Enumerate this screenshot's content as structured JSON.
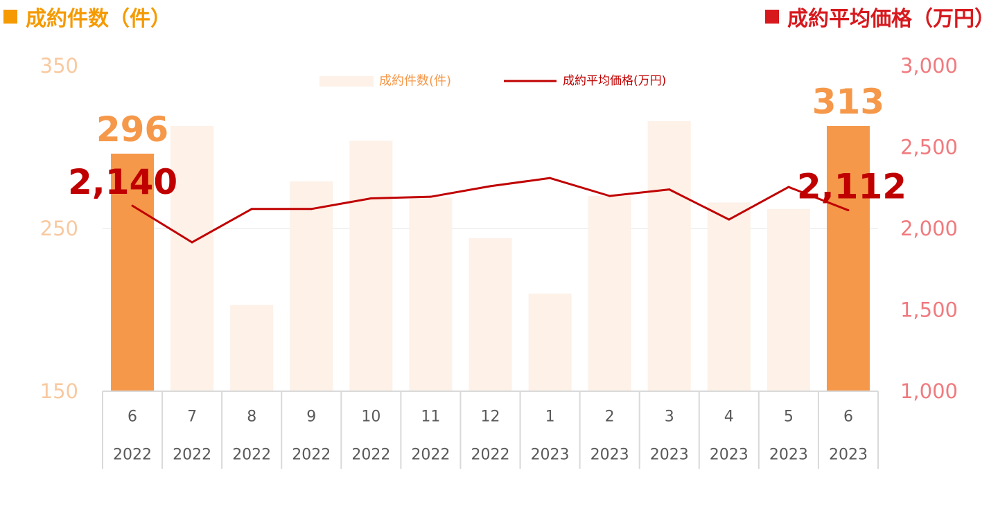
{
  "headers": {
    "left": {
      "text": "成約件数（件）",
      "color": "#F59A00"
    },
    "right": {
      "text": "成約平均価格（万円）",
      "color": "#D7191E"
    }
  },
  "colors": {
    "bar_faded": "#FDF1E8",
    "bar_highlight": "#F5984A",
    "line": "#C00000",
    "left_axis_text": "#F8C9A0",
    "right_axis_text": "#F07A7E",
    "bar_label": "#F5984A",
    "line_label": "#C00000",
    "table_line": "#D9D9D9",
    "table_text": "#595959",
    "legend_text_bar": "#F5984A"
  },
  "chart_data": {
    "type": "bar",
    "categories": [
      "6",
      "7",
      "8",
      "9",
      "10",
      "11",
      "12",
      "1",
      "2",
      "3",
      "4",
      "5",
      "6"
    ],
    "category_years": [
      "2022",
      "2022",
      "2022",
      "2022",
      "2022",
      "2022",
      "2022",
      "2023",
      "2023",
      "2023",
      "2023",
      "2023",
      "2023"
    ],
    "series": [
      {
        "name": "成約件数(件)",
        "type": "bar",
        "axis": "left",
        "values": [
          296,
          313,
          203,
          279,
          304,
          269,
          244,
          210,
          270,
          316,
          266,
          262,
          313
        ],
        "highlight": [
          true,
          false,
          false,
          false,
          false,
          false,
          false,
          false,
          false,
          false,
          false,
          false,
          true
        ]
      },
      {
        "name": "成約平均価格(万円)",
        "type": "line",
        "axis": "right",
        "values": [
          2140,
          1915,
          2120,
          2120,
          2185,
          2195,
          2260,
          2310,
          2200,
          2240,
          2055,
          2255,
          2112
        ]
      }
    ],
    "left_axis": {
      "ylim": [
        150,
        350
      ],
      "ticks": [
        "150",
        "250",
        "350"
      ]
    },
    "right_axis": {
      "ylim": [
        1000,
        3000
      ],
      "ticks": [
        "1,000",
        "1,500",
        "2,000",
        "2,500",
        "3,000"
      ]
    },
    "annotations": [
      {
        "series": 0,
        "index": 0,
        "text": "296"
      },
      {
        "series": 0,
        "index": 12,
        "text": "313"
      },
      {
        "series": 1,
        "index": 0,
        "text": "2,140"
      },
      {
        "series": 1,
        "index": 12,
        "text": "2,112"
      }
    ],
    "legend": {
      "position": "top",
      "labels": [
        "成約件数(件)",
        "成約平均価格(万円)"
      ]
    },
    "grid": true
  }
}
